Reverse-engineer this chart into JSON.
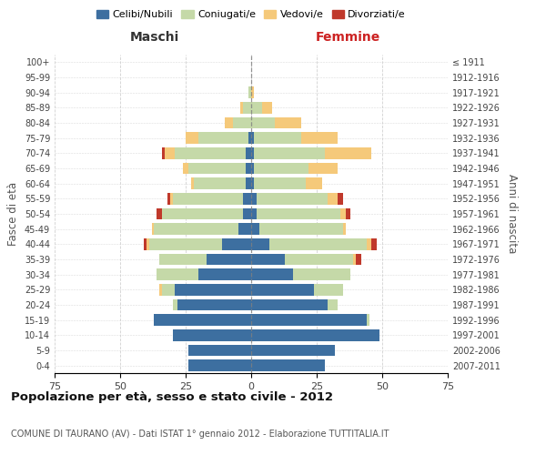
{
  "age_groups": [
    "0-4",
    "5-9",
    "10-14",
    "15-19",
    "20-24",
    "25-29",
    "30-34",
    "35-39",
    "40-44",
    "45-49",
    "50-54",
    "55-59",
    "60-64",
    "65-69",
    "70-74",
    "75-79",
    "80-84",
    "85-89",
    "90-94",
    "95-99",
    "100+"
  ],
  "birth_years": [
    "2007-2011",
    "2002-2006",
    "1997-2001",
    "1992-1996",
    "1987-1991",
    "1982-1986",
    "1977-1981",
    "1972-1976",
    "1967-1971",
    "1962-1966",
    "1957-1961",
    "1952-1956",
    "1947-1951",
    "1942-1946",
    "1937-1941",
    "1932-1936",
    "1927-1931",
    "1922-1926",
    "1917-1921",
    "1912-1916",
    "≤ 1911"
  ],
  "maschi": {
    "celibi": [
      24,
      24,
      30,
      37,
      28,
      29,
      20,
      17,
      11,
      5,
      3,
      3,
      2,
      2,
      2,
      1,
      0,
      0,
      0,
      0,
      0
    ],
    "coniugati": [
      0,
      0,
      0,
      0,
      2,
      5,
      16,
      18,
      28,
      32,
      31,
      27,
      20,
      22,
      27,
      19,
      7,
      3,
      1,
      0,
      0
    ],
    "vedovi": [
      0,
      0,
      0,
      0,
      0,
      1,
      0,
      0,
      1,
      1,
      0,
      1,
      1,
      2,
      4,
      5,
      3,
      1,
      0,
      0,
      0
    ],
    "divorziati": [
      0,
      0,
      0,
      0,
      0,
      0,
      0,
      0,
      1,
      0,
      2,
      1,
      0,
      0,
      1,
      0,
      0,
      0,
      0,
      0,
      0
    ]
  },
  "femmine": {
    "nubili": [
      28,
      32,
      49,
      44,
      29,
      24,
      16,
      13,
      7,
      3,
      2,
      2,
      1,
      1,
      1,
      1,
      0,
      0,
      0,
      0,
      0
    ],
    "coniugate": [
      0,
      0,
      0,
      1,
      4,
      11,
      22,
      26,
      37,
      32,
      32,
      27,
      20,
      21,
      27,
      18,
      9,
      4,
      0,
      0,
      0
    ],
    "vedove": [
      0,
      0,
      0,
      0,
      0,
      0,
      0,
      1,
      2,
      1,
      2,
      4,
      6,
      11,
      18,
      14,
      10,
      4,
      1,
      0,
      0
    ],
    "divorziate": [
      0,
      0,
      0,
      0,
      0,
      0,
      0,
      2,
      2,
      0,
      2,
      2,
      0,
      0,
      0,
      0,
      0,
      0,
      0,
      0,
      0
    ]
  },
  "colors": {
    "celibi_nubili": "#3d6fa0",
    "coniugati_e": "#c5d9a8",
    "vedovi_e": "#f5c97a",
    "divorziati_e": "#c0392b"
  },
  "title": "Popolazione per età, sesso e stato civile - 2012",
  "subtitle": "COMUNE DI TAURANO (AV) - Dati ISTAT 1° gennaio 2012 - Elaborazione TUTTITALIA.IT",
  "xlabel_left": "Maschi",
  "xlabel_right": "Femmine",
  "ylabel_left": "Fasce di età",
  "ylabel_right": "Anni di nascita",
  "xlim": 75,
  "bg_color": "#ffffff",
  "grid_color": "#cccccc",
  "legend_labels": [
    "Celibi/Nubili",
    "Coniugati/e",
    "Vedovi/e",
    "Divorziati/e"
  ]
}
